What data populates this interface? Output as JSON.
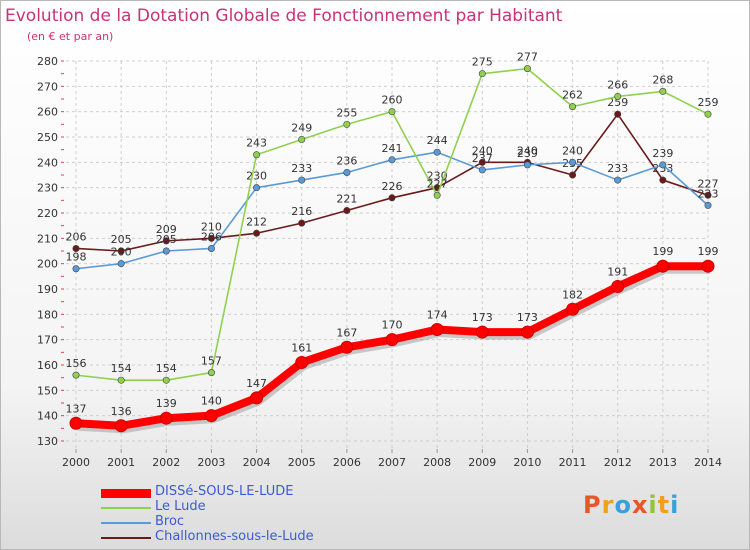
{
  "title": "Evolution de la Dotation Globale de Fonctionnement par Habitant",
  "subtitle": "(en € et par an)",
  "logo": "Proxiti",
  "chart_data": {
    "type": "line",
    "x": [
      "2000",
      "2001",
      "2002",
      "2003",
      "2004",
      "2005",
      "2006",
      "2007",
      "2008",
      "2009",
      "2010",
      "2011",
      "2012",
      "2013",
      "2014"
    ],
    "ylim": [
      130,
      280
    ],
    "yticks": [
      130,
      140,
      150,
      160,
      170,
      180,
      190,
      200,
      210,
      220,
      230,
      240,
      250,
      260,
      270,
      280
    ],
    "grid": true,
    "legend_position": "bottom-left",
    "series": [
      {
        "name": "Challonnes-sous-le-Lude",
        "color": "#6b1a1a",
        "values": [
          206,
          205,
          209,
          210,
          212,
          216,
          221,
          226,
          230,
          240,
          240,
          235,
          259,
          233,
          227
        ]
      },
      {
        "name": "Broc",
        "color": "#5b9bd5",
        "values": [
          198,
          200,
          205,
          206,
          230,
          233,
          236,
          241,
          244,
          237,
          239,
          240,
          233,
          239,
          223
        ]
      },
      {
        "name": "Le Lude",
        "color": "#8fd14f",
        "values": [
          156,
          154,
          154,
          157,
          243,
          249,
          255,
          260,
          227,
          275,
          277,
          262,
          266,
          268,
          259
        ]
      },
      {
        "name": "DISSé-SOUS-LE-LUDE",
        "color": "#ff0000",
        "values": [
          137,
          136,
          139,
          140,
          147,
          161,
          167,
          170,
          174,
          173,
          173,
          182,
          191,
          199,
          199
        ]
      }
    ]
  }
}
